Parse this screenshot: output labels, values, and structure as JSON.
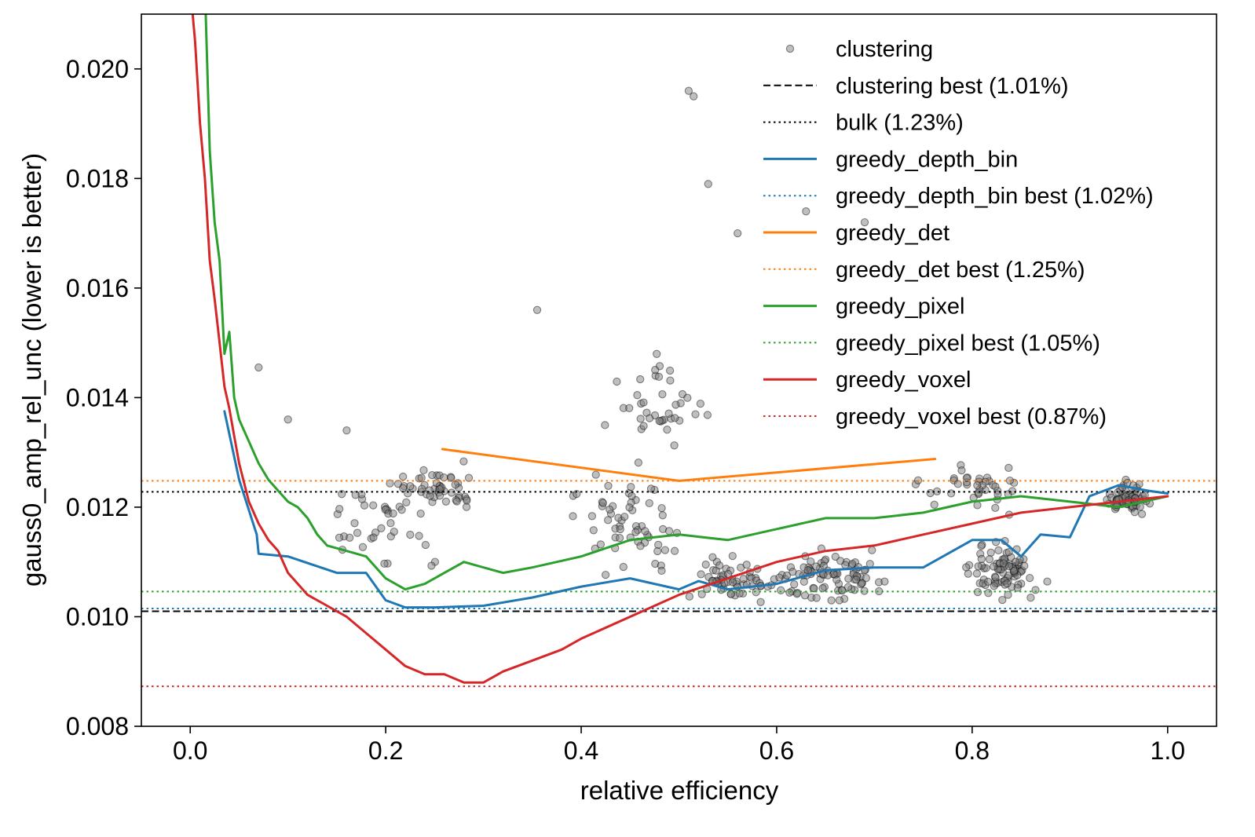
{
  "chart_data": {
    "type": "line",
    "xlabel": "relative efficiency",
    "ylabel": "gauss0_amp_rel_unc (lower is better)",
    "xlim": [
      -0.05,
      1.05
    ],
    "ylim": [
      0.008,
      0.021
    ],
    "xticks": [
      0.0,
      0.2,
      0.4,
      0.6,
      0.8,
      1.0
    ],
    "xtick_labels": [
      "0.0",
      "0.2",
      "0.4",
      "0.6",
      "0.8",
      "1.0"
    ],
    "yticks": [
      0.008,
      0.01,
      0.012,
      0.014,
      0.016,
      0.018,
      0.02
    ],
    "ytick_labels": [
      "0.008",
      "0.010",
      "0.012",
      "0.014",
      "0.016",
      "0.018",
      "0.020"
    ],
    "grid": false,
    "legend_position": "top-right",
    "colors": {
      "clustering": "#7f7f7f",
      "clustering_best": "#000000",
      "bulk": "#000000",
      "greedy_depth_bin": "#1f77b4",
      "greedy_det": "#ff7f0e",
      "greedy_pixel": "#2ca02c",
      "greedy_voxel": "#d62728"
    },
    "legend": [
      {
        "label": "clustering",
        "kind": "marker",
        "color": "#7f7f7f"
      },
      {
        "label": "clustering best (1.01%)",
        "kind": "dashed",
        "color": "#000000"
      },
      {
        "label": "bulk (1.23%)",
        "kind": "dotted",
        "color": "#000000"
      },
      {
        "label": "greedy_depth_bin",
        "kind": "solid",
        "color": "#1f77b4"
      },
      {
        "label": "greedy_depth_bin best (1.02%)",
        "kind": "dotted",
        "color": "#1f77b4"
      },
      {
        "label": "greedy_det",
        "kind": "solid",
        "color": "#ff7f0e"
      },
      {
        "label": "greedy_det best (1.25%)",
        "kind": "dotted",
        "color": "#ff7f0e"
      },
      {
        "label": "greedy_pixel",
        "kind": "solid",
        "color": "#2ca02c"
      },
      {
        "label": "greedy_pixel best (1.05%)",
        "kind": "dotted",
        "color": "#2ca02c"
      },
      {
        "label": "greedy_voxel",
        "kind": "solid",
        "color": "#d62728"
      },
      {
        "label": "greedy_voxel best (0.87%)",
        "kind": "dotted",
        "color": "#d62728"
      }
    ],
    "hlines": [
      {
        "name": "clustering best",
        "y": 0.0101,
        "style": "dashed",
        "color": "#000000"
      },
      {
        "name": "bulk",
        "y": 0.01228,
        "style": "dotted",
        "color": "#000000"
      },
      {
        "name": "greedy_depth_bin best",
        "y": 0.01015,
        "style": "dotted",
        "color": "#1f77b4"
      },
      {
        "name": "greedy_det best",
        "y": 0.01248,
        "style": "dotted",
        "color": "#ff7f0e"
      },
      {
        "name": "greedy_pixel best",
        "y": 0.01046,
        "style": "dotted",
        "color": "#2ca02c"
      },
      {
        "name": "greedy_voxel best",
        "y": 0.00873,
        "style": "dotted",
        "color": "#d62728"
      }
    ],
    "series": [
      {
        "name": "greedy_depth_bin",
        "color": "#1f77b4",
        "x": [
          0.035,
          0.05,
          0.068,
          0.07,
          0.1,
          0.15,
          0.18,
          0.2,
          0.22,
          0.25,
          0.3,
          0.35,
          0.4,
          0.45,
          0.5,
          0.52,
          0.55,
          0.6,
          0.65,
          0.7,
          0.75,
          0.8,
          0.83,
          0.85,
          0.87,
          0.9,
          0.92,
          0.95,
          0.98,
          1.0
        ],
        "y": [
          0.01375,
          0.0125,
          0.0115,
          0.01115,
          0.0111,
          0.0108,
          0.0108,
          0.0103,
          0.01017,
          0.01017,
          0.0102,
          0.01035,
          0.01055,
          0.0107,
          0.0105,
          0.01065,
          0.0105,
          0.0106,
          0.01085,
          0.0109,
          0.0109,
          0.0114,
          0.0114,
          0.0111,
          0.0115,
          0.01145,
          0.0122,
          0.0124,
          0.0123,
          0.01225
        ]
      },
      {
        "name": "greedy_det",
        "color": "#ff7f0e",
        "x": [
          0.258,
          0.5,
          0.762
        ],
        "y": [
          0.01306,
          0.01248,
          0.01288
        ]
      },
      {
        "name": "greedy_pixel",
        "color": "#2ca02c",
        "x": [
          0.015,
          0.02,
          0.025,
          0.03,
          0.035,
          0.04,
          0.045,
          0.05,
          0.06,
          0.07,
          0.08,
          0.09,
          0.1,
          0.11,
          0.12,
          0.13,
          0.14,
          0.16,
          0.18,
          0.2,
          0.22,
          0.24,
          0.26,
          0.28,
          0.3,
          0.32,
          0.35,
          0.4,
          0.45,
          0.5,
          0.55,
          0.6,
          0.65,
          0.7,
          0.75,
          0.8,
          0.85,
          0.9,
          0.95,
          1.0
        ],
        "y": [
          0.0215,
          0.0185,
          0.0172,
          0.0165,
          0.0148,
          0.0152,
          0.014,
          0.0136,
          0.0132,
          0.0128,
          0.0125,
          0.0123,
          0.0121,
          0.012,
          0.0118,
          0.0115,
          0.0113,
          0.0112,
          0.0111,
          0.0107,
          0.0105,
          0.0106,
          0.0108,
          0.011,
          0.0109,
          0.0108,
          0.0109,
          0.0111,
          0.0114,
          0.0115,
          0.0114,
          0.0116,
          0.0118,
          0.0118,
          0.0119,
          0.0121,
          0.0122,
          0.0121,
          0.012,
          0.0122
        ]
      },
      {
        "name": "greedy_voxel",
        "color": "#d62728",
        "x": [
          0.0,
          0.005,
          0.01,
          0.015,
          0.02,
          0.025,
          0.03,
          0.035,
          0.04,
          0.045,
          0.05,
          0.06,
          0.07,
          0.08,
          0.09,
          0.1,
          0.12,
          0.14,
          0.16,
          0.18,
          0.2,
          0.22,
          0.24,
          0.26,
          0.28,
          0.3,
          0.32,
          0.35,
          0.38,
          0.4,
          0.45,
          0.5,
          0.55,
          0.6,
          0.65,
          0.7,
          0.75,
          0.8,
          0.85,
          0.9,
          0.95,
          1.0
        ],
        "y": [
          0.0215,
          0.0205,
          0.019,
          0.018,
          0.0165,
          0.0158,
          0.015,
          0.0142,
          0.0138,
          0.0133,
          0.0128,
          0.0121,
          0.0117,
          0.0114,
          0.0112,
          0.0108,
          0.0104,
          0.0102,
          0.01,
          0.0097,
          0.0094,
          0.0091,
          0.00895,
          0.00895,
          0.0088,
          0.0088,
          0.009,
          0.0092,
          0.0094,
          0.0096,
          0.01,
          0.0104,
          0.0107,
          0.011,
          0.0112,
          0.0113,
          0.0115,
          0.0117,
          0.0119,
          0.012,
          0.0121,
          0.0122
        ]
      }
    ]
  }
}
